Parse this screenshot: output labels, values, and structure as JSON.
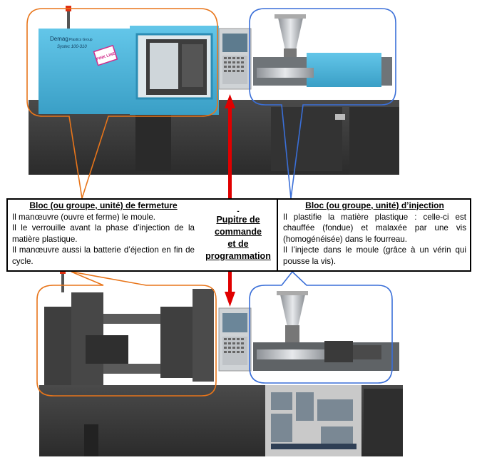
{
  "machine_top": {
    "brand": "Demag",
    "brand_sub": "Plastics Group",
    "model": "Systec 100-310",
    "stamp": "PINK LINE"
  },
  "closing_unit": {
    "title": "Bloc (ou groupe, unité) de fermeture",
    "lines": [
      "Il manœuvre (ouvre et ferme) le moule.",
      "Il le verrouille avant la phase d’injection de la matière plastique.",
      "Il manœuvre aussi la batterie d’éjection en fin de cycle."
    ]
  },
  "control_panel": {
    "dash": "-",
    "line1": "Pupitre de",
    "line2": "commande",
    "line3": "et de",
    "line4": "programmation"
  },
  "injection_unit": {
    "title": "Bloc (ou groupe, unité) d’injection",
    "lines": [
      "Il plastifie la matière plastique : celle-ci est chauffée (fondue) et malaxée par une vis (homogénéisée) dans le fourreau.",
      "Il l’injecte dans le moule (grâce à un vérin qui pousse la vis)."
    ]
  },
  "colors": {
    "closing_outline": "#e8751a",
    "injection_outline": "#3a6fd8",
    "arrow": "#e00000",
    "machine_blue": "#4fb8de",
    "machine_dark": "#3a3a3a"
  }
}
